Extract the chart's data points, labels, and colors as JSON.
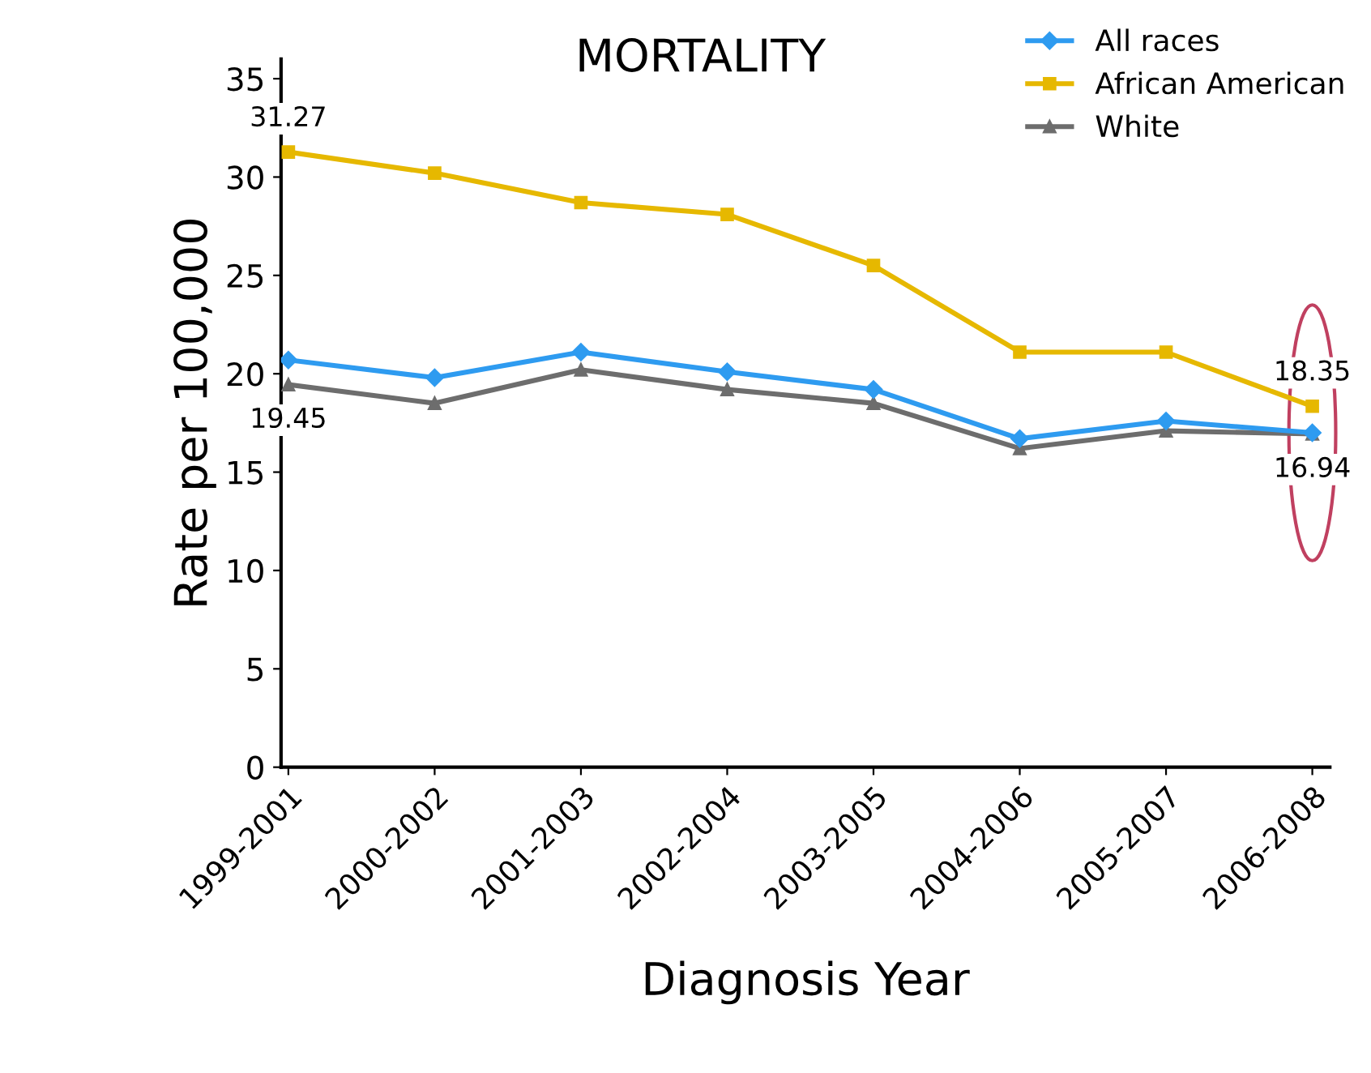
{
  "chart_data": {
    "type": "line",
    "title": "MORTALITY",
    "xlabel": "Diagnosis Year",
    "ylabel": "Rate per 100,000",
    "categories": [
      "1999-2001",
      "2000-2002",
      "2001-2003",
      "2002-2004",
      "2003-2005",
      "2004-2006",
      "2005-2007",
      "2006-2008"
    ],
    "series": [
      {
        "name": "All races",
        "color": "#2e9bf0",
        "marker": "diamond",
        "values": [
          20.7,
          19.8,
          21.1,
          20.1,
          19.2,
          16.7,
          17.6,
          17.0
        ]
      },
      {
        "name": "African American",
        "color": "#e6b800",
        "marker": "square",
        "values": [
          31.27,
          30.2,
          28.7,
          28.1,
          25.5,
          21.1,
          21.1,
          18.35
        ],
        "value_labels": [
          "31.27",
          null,
          null,
          null,
          null,
          null,
          null,
          "18.35"
        ]
      },
      {
        "name": "White",
        "color": "#6d6d6d",
        "marker": "triangle",
        "values": [
          19.45,
          18.5,
          20.2,
          19.2,
          18.5,
          16.2,
          17.1,
          16.94
        ],
        "value_labels": [
          "19.45",
          null,
          null,
          null,
          null,
          null,
          null,
          "16.94"
        ]
      }
    ],
    "ylim": [
      0,
      36
    ],
    "yticks": [
      0,
      5,
      10,
      15,
      20,
      25,
      30,
      35
    ],
    "grid": false,
    "legend": "top right",
    "line_style": "solid"
  }
}
